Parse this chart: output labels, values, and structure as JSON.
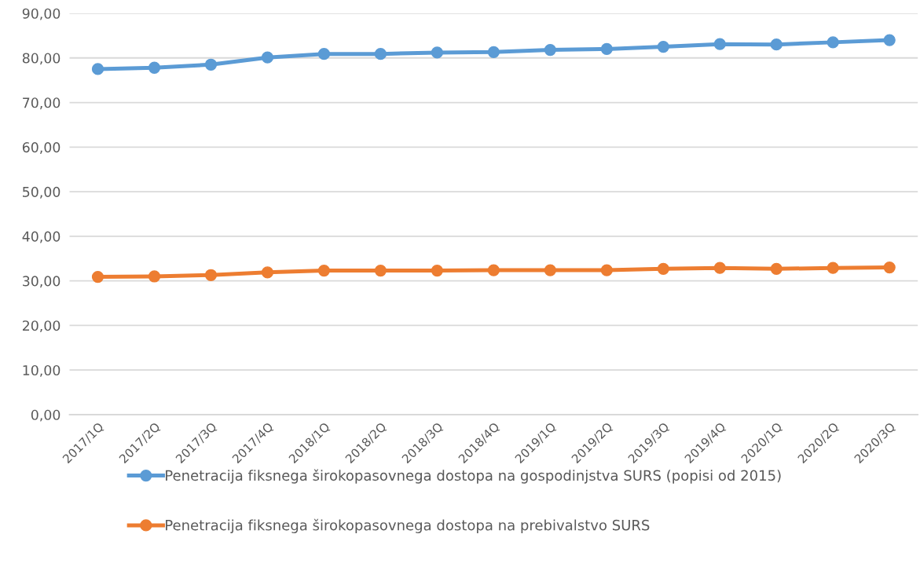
{
  "chart_data": {
    "type": "line",
    "categories": [
      "2017/1Q",
      "2017/2Q",
      "2017/3Q",
      "2017/4Q",
      "2018/1Q",
      "2018/2Q",
      "2018/3Q",
      "2018/4Q",
      "2019/1Q",
      "2019/2Q",
      "2019/3Q",
      "2019/4Q",
      "2020/1Q",
      "2020/2Q",
      "2020/3Q"
    ],
    "series": [
      {
        "name": "Penetracija fiksnega širokopasovnega dostopa na gospodinjstva SURS (popisi od 2015)",
        "color": "#5b9bd5",
        "values": [
          77.5,
          77.8,
          78.5,
          80.1,
          80.9,
          80.9,
          81.2,
          81.3,
          81.8,
          82.0,
          82.5,
          83.1,
          83.0,
          83.5,
          84.0
        ]
      },
      {
        "name": "Penetracija fiksnega širokopasovnega dostopa na prebivalstvo SURS",
        "color": "#ed7d31",
        "values": [
          30.9,
          31.0,
          31.3,
          31.9,
          32.3,
          32.3,
          32.3,
          32.4,
          32.4,
          32.4,
          32.7,
          32.9,
          32.7,
          32.9,
          33.0
        ]
      }
    ],
    "ylim": [
      0,
      90
    ],
    "yticks": [
      {
        "value": 0,
        "label": "0,00"
      },
      {
        "value": 10,
        "label": "10,00"
      },
      {
        "value": 20,
        "label": "20,00"
      },
      {
        "value": 30,
        "label": "30,00"
      },
      {
        "value": 40,
        "label": "40,00"
      },
      {
        "value": 50,
        "label": "50,00"
      },
      {
        "value": 60,
        "label": "60,00"
      },
      {
        "value": 70,
        "label": "70,00"
      },
      {
        "value": 80,
        "label": "80,00"
      },
      {
        "value": 90,
        "label": "90,00"
      }
    ],
    "grid": "y",
    "legend": "bottom",
    "marker": "circle",
    "line_style": "solid"
  }
}
